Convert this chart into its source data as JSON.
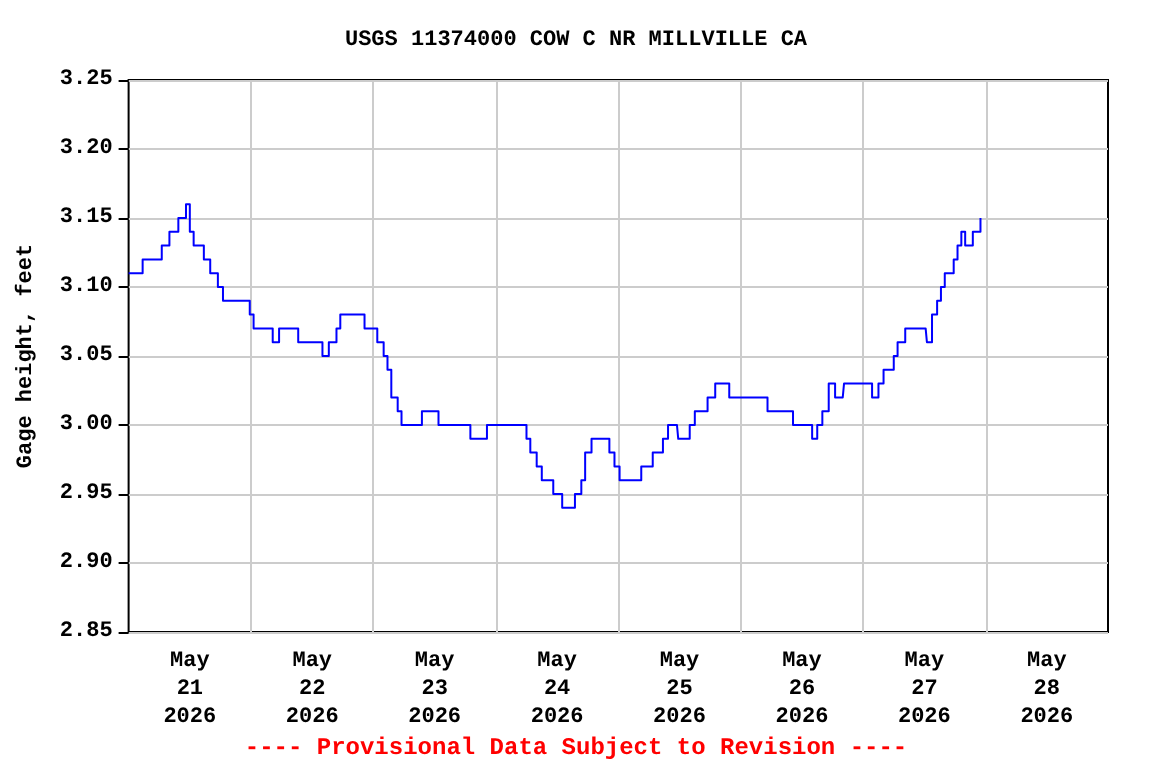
{
  "chart_data": {
    "type": "step",
    "title": "USGS 11374000 COW C NR MILLVILLE CA",
    "ylabel": "Gage height, feet",
    "annotations": [
      "---- Provisional Data Subject to Revision ----"
    ],
    "x": [
      "2026-05-21T00:00",
      "2026-05-21T02:45",
      "2026-05-21T05:00",
      "2026-05-21T06:30",
      "2026-05-21T08:00",
      "2026-05-21T09:45",
      "2026-05-21T11:15",
      "2026-05-21T12:00",
      "2026-05-21T12:45",
      "2026-05-21T14:45",
      "2026-05-21T16:00",
      "2026-05-21T17:30",
      "2026-05-21T18:30",
      "2026-05-21T23:45",
      "2026-05-22T00:30",
      "2026-05-22T04:15",
      "2026-05-22T05:30",
      "2026-05-22T09:15",
      "2026-05-22T14:00",
      "2026-05-22T15:15",
      "2026-05-22T16:45",
      "2026-05-22T17:30",
      "2026-05-22T21:45",
      "2026-05-22T22:15",
      "2026-05-23T00:45",
      "2026-05-23T02:00",
      "2026-05-23T02:45",
      "2026-05-23T03:30",
      "2026-05-23T04:45",
      "2026-05-23T05:30",
      "2026-05-23T08:30",
      "2026-05-23T09:30",
      "2026-05-23T12:00",
      "2026-05-23T12:45",
      "2026-05-23T18:15",
      "2026-05-23T19:00",
      "2026-05-23T21:30",
      "2026-05-23T22:15",
      "2026-05-24T05:15",
      "2026-05-24T06:00",
      "2026-05-24T06:45",
      "2026-05-24T08:00",
      "2026-05-24T09:00",
      "2026-05-24T11:15",
      "2026-05-24T13:00",
      "2026-05-24T14:45",
      "2026-05-24T15:30",
      "2026-05-24T16:45",
      "2026-05-24T17:30",
      "2026-05-24T18:45",
      "2026-05-24T21:30",
      "2026-05-24T22:15",
      "2026-05-24T23:15",
      "2026-05-25T00:15",
      "2026-05-25T03:15",
      "2026-05-25T04:30",
      "2026-05-25T06:00",
      "2026-05-25T06:45",
      "2026-05-25T08:00",
      "2026-05-25T08:45",
      "2026-05-25T09:45",
      "2026-05-25T11:30",
      "2026-05-25T11:45",
      "2026-05-25T13:15",
      "2026-05-25T14:00",
      "2026-05-25T15:00",
      "2026-05-25T16:45",
      "2026-05-25T17:30",
      "2026-05-25T19:00",
      "2026-05-25T20:45",
      "2026-05-25T21:45",
      "2026-05-25T23:30",
      "2026-05-26T04:30",
      "2026-05-26T05:15",
      "2026-05-26T09:00",
      "2026-05-26T10:15",
      "2026-05-26T13:15",
      "2026-05-26T14:00",
      "2026-05-26T15:00",
      "2026-05-26T16:00",
      "2026-05-26T17:15",
      "2026-05-26T18:30",
      "2026-05-26T20:00",
      "2026-05-26T20:15",
      "2026-05-27T01:00",
      "2026-05-27T01:45",
      "2026-05-27T03:00",
      "2026-05-27T04:00",
      "2026-05-27T06:00",
      "2026-05-27T06:45",
      "2026-05-27T08:15",
      "2026-05-27T12:15",
      "2026-05-27T12:30",
      "2026-05-27T13:30",
      "2026-05-27T14:30",
      "2026-05-27T15:15",
      "2026-05-27T16:00",
      "2026-05-27T17:45",
      "2026-05-27T18:30",
      "2026-05-27T19:15",
      "2026-05-27T20:00",
      "2026-05-27T21:30",
      "2026-05-27T23:00"
    ],
    "values": [
      3.11,
      3.12,
      3.12,
      3.13,
      3.14,
      3.15,
      3.16,
      3.14,
      3.13,
      3.12,
      3.11,
      3.1,
      3.09,
      3.08,
      3.07,
      3.06,
      3.07,
      3.06,
      3.05,
      3.06,
      3.07,
      3.08,
      3.08,
      3.07,
      3.06,
      3.05,
      3.04,
      3.02,
      3.01,
      3.0,
      3.0,
      3.01,
      3.01,
      3.0,
      3.0,
      2.99,
      2.99,
      3.0,
      3.0,
      2.99,
      2.98,
      2.97,
      2.96,
      2.95,
      2.94,
      2.94,
      2.95,
      2.96,
      2.98,
      2.99,
      2.99,
      2.98,
      2.97,
      2.96,
      2.96,
      2.97,
      2.97,
      2.98,
      2.98,
      2.99,
      3.0,
      3.0,
      2.99,
      2.99,
      3.0,
      3.01,
      3.01,
      3.02,
      3.03,
      3.03,
      3.02,
      3.02,
      3.02,
      3.01,
      3.01,
      3.0,
      3.0,
      2.99,
      3.0,
      3.01,
      3.03,
      3.02,
      3.02,
      3.03,
      3.03,
      3.02,
      3.03,
      3.04,
      3.05,
      3.06,
      3.07,
      3.07,
      3.06,
      3.08,
      3.09,
      3.1,
      3.11,
      3.12,
      3.13,
      3.14,
      3.13,
      3.14,
      3.15
    ],
    "color": "#0000ff",
    "marker": "none",
    "line_style": "solid",
    "grid": true,
    "xlim": [
      "2026-05-21T00:00",
      "2026-05-29T00:00"
    ],
    "xticks": [
      {
        "value": "2026-05-21T12:00",
        "label": "May\n21\n2026"
      },
      {
        "value": "2026-05-22T00:00",
        "label": null
      },
      {
        "value": "2026-05-22T12:00",
        "label": "May\n22\n2026"
      },
      {
        "value": "2026-05-23T00:00",
        "label": null
      },
      {
        "value": "2026-05-23T12:00",
        "label": "May\n23\n2026"
      },
      {
        "value": "2026-05-24T00:00",
        "label": null
      },
      {
        "value": "2026-05-24T12:00",
        "label": "May\n24\n2026"
      },
      {
        "value": "2026-05-25T00:00",
        "label": null
      },
      {
        "value": "2026-05-25T12:00",
        "label": "May\n25\n2026"
      },
      {
        "value": "2026-05-26T00:00",
        "label": null
      },
      {
        "value": "2026-05-26T12:00",
        "label": "May\n26\n2026"
      },
      {
        "value": "2026-05-27T00:00",
        "label": null
      },
      {
        "value": "2026-05-27T12:00",
        "label": "May\n27\n2026"
      },
      {
        "value": "2026-05-28T00:00",
        "label": null
      },
      {
        "value": "2026-05-28T12:00",
        "label": "May\n28\n2026"
      }
    ],
    "ylim": [
      2.85,
      3.25
    ],
    "yticks": [
      {
        "value": 2.85,
        "label": "2.85"
      },
      {
        "value": 2.9,
        "label": "2.90"
      },
      {
        "value": 2.95,
        "label": "2.95"
      },
      {
        "value": 3.0,
        "label": "3.00"
      },
      {
        "value": 3.05,
        "label": "3.05"
      },
      {
        "value": 3.1,
        "label": "3.10"
      },
      {
        "value": 3.15,
        "label": "3.15"
      },
      {
        "value": 3.2,
        "label": "3.20"
      },
      {
        "value": 3.25,
        "label": "3.25"
      }
    ]
  }
}
